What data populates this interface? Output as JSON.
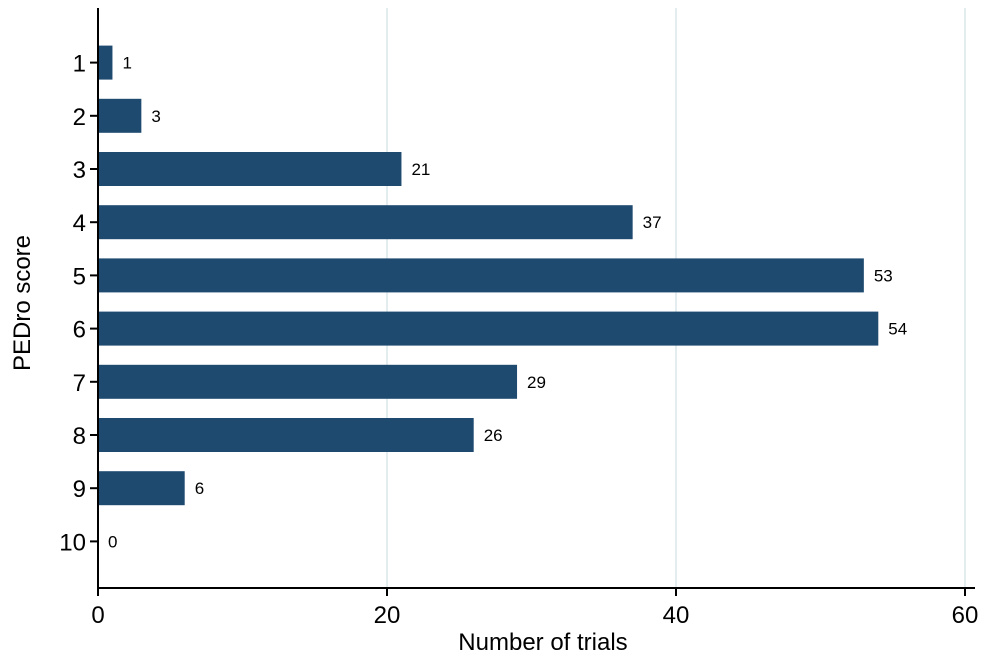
{
  "chart_data": {
    "type": "bar",
    "orientation": "horizontal",
    "categories": [
      "1",
      "2",
      "3",
      "4",
      "5",
      "6",
      "7",
      "8",
      "9",
      "10"
    ],
    "values": [
      1,
      3,
      21,
      37,
      53,
      54,
      29,
      26,
      6,
      0
    ],
    "xlabel": "Number of trials",
    "ylabel": "PEDro score",
    "xlim": [
      0,
      60
    ],
    "x_ticks": [
      0,
      20,
      40,
      60
    ],
    "grid": true,
    "bar_color": "#1f4a70",
    "grid_color": "#e3ecef"
  }
}
